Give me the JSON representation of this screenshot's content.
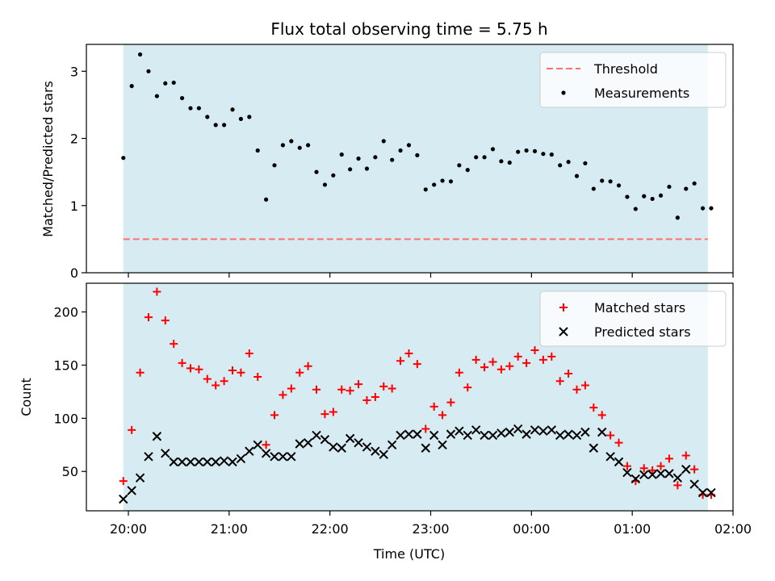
{
  "figure": {
    "title": "Flux total observing time = 5.75 h"
  },
  "chart_data": [
    {
      "type": "scatter",
      "panel": "top",
      "title": "Flux total observing time = 5.75 h",
      "xlabel": "",
      "ylabel": "Matched/Predicted stars",
      "xlim": [
        "19:35",
        "02:00"
      ],
      "ylim": [
        0,
        3.4
      ],
      "yticks": [
        0,
        1,
        2,
        3
      ],
      "xticks": [
        "20:00",
        "21:00",
        "22:00",
        "23:00",
        "00:00",
        "01:00",
        "02:00"
      ],
      "show_xticklabels": false,
      "shaded_span": {
        "from": "19:57",
        "to": "01:45",
        "color": "#add8e6"
      },
      "legend": {
        "placement": "top-right",
        "entries": [
          "Threshold",
          "Measurements"
        ]
      },
      "series": [
        {
          "name": "Threshold",
          "kind": "hline",
          "y": 0.5,
          "from": "19:57",
          "to": "01:45",
          "color": "#ff7070",
          "style": "dashed"
        },
        {
          "name": "Measurements",
          "kind": "points",
          "color": "#000000",
          "x": [
            "19:57",
            "20:02",
            "20:07",
            "20:12",
            "20:17",
            "20:22",
            "20:27",
            "20:32",
            "20:37",
            "20:42",
            "20:47",
            "20:52",
            "20:57",
            "21:02",
            "21:07",
            "21:12",
            "21:17",
            "21:22",
            "21:27",
            "21:32",
            "21:37",
            "21:42",
            "21:47",
            "21:52",
            "21:57",
            "22:02",
            "22:07",
            "22:12",
            "22:17",
            "22:22",
            "22:27",
            "22:32",
            "22:37",
            "22:42",
            "22:47",
            "22:52",
            "22:57",
            "23:02",
            "23:07",
            "23:12",
            "23:17",
            "23:22",
            "23:27",
            "23:32",
            "23:37",
            "23:42",
            "23:47",
            "23:52",
            "23:57",
            "00:02",
            "00:07",
            "00:12",
            "00:17",
            "00:22",
            "00:27",
            "00:32",
            "00:37",
            "00:42",
            "00:47",
            "00:52",
            "00:57",
            "01:02",
            "01:07",
            "01:12",
            "01:17",
            "01:22",
            "01:27",
            "01:32",
            "01:37",
            "01:42",
            "01:47"
          ],
          "y": [
            1.71,
            2.78,
            3.25,
            3.0,
            2.63,
            2.82,
            2.83,
            2.6,
            2.45,
            2.45,
            2.32,
            2.2,
            2.2,
            2.43,
            2.29,
            2.32,
            1.82,
            1.09,
            1.6,
            1.9,
            1.96,
            1.86,
            1.9,
            1.5,
            1.31,
            1.45,
            1.76,
            1.54,
            1.7,
            1.55,
            1.72,
            1.96,
            1.68,
            1.82,
            1.9,
            1.75,
            1.24,
            1.31,
            1.37,
            1.36,
            1.6,
            1.53,
            1.72,
            1.72,
            1.84,
            1.66,
            1.64,
            1.8,
            1.82,
            1.81,
            1.77,
            1.76,
            1.6,
            1.65,
            1.44,
            1.63,
            1.25,
            1.37,
            1.36,
            1.3,
            1.13,
            0.95,
            1.14,
            1.1,
            1.15,
            1.28,
            0.82,
            1.25,
            1.33,
            0.96,
            0.96
          ]
        }
      ]
    },
    {
      "type": "scatter",
      "panel": "bottom",
      "xlabel": "Time (UTC)",
      "ylabel": "Count",
      "xlim": [
        "19:35",
        "02:00"
      ],
      "ylim": [
        13,
        227
      ],
      "yticks": [
        50,
        100,
        150,
        200
      ],
      "xticks": [
        "20:00",
        "21:00",
        "22:00",
        "23:00",
        "00:00",
        "01:00",
        "02:00"
      ],
      "shaded_span": {
        "from": "19:57",
        "to": "01:45",
        "color": "#add8e6"
      },
      "legend": {
        "placement": "top-right",
        "entries": [
          "Matched stars",
          "Predicted stars"
        ]
      },
      "series": [
        {
          "name": "Matched stars",
          "marker": "+",
          "color": "#ff0000",
          "x": [
            "19:57",
            "20:02",
            "20:07",
            "20:12",
            "20:17",
            "20:22",
            "20:27",
            "20:32",
            "20:37",
            "20:42",
            "20:47",
            "20:52",
            "20:57",
            "21:02",
            "21:07",
            "21:12",
            "21:17",
            "21:22",
            "21:27",
            "21:32",
            "21:37",
            "21:42",
            "21:47",
            "21:52",
            "21:57",
            "22:02",
            "22:07",
            "22:12",
            "22:17",
            "22:22",
            "22:27",
            "22:32",
            "22:37",
            "22:42",
            "22:47",
            "22:52",
            "22:57",
            "23:02",
            "23:07",
            "23:12",
            "23:17",
            "23:22",
            "23:27",
            "23:32",
            "23:37",
            "23:42",
            "23:47",
            "23:52",
            "23:57",
            "00:02",
            "00:07",
            "00:12",
            "00:17",
            "00:22",
            "00:27",
            "00:32",
            "00:37",
            "00:42",
            "00:47",
            "00:52",
            "00:57",
            "01:02",
            "01:07",
            "01:12",
            "01:17",
            "01:22",
            "01:27",
            "01:32",
            "01:37",
            "01:42",
            "01:47"
          ],
          "y": [
            41,
            89,
            143,
            195,
            219,
            192,
            170,
            152,
            147,
            146,
            137,
            131,
            135,
            145,
            143,
            161,
            139,
            75,
            103,
            122,
            128,
            143,
            149,
            127,
            104,
            106,
            127,
            126,
            132,
            117,
            120,
            130,
            128,
            154,
            161,
            151,
            90,
            111,
            103,
            115,
            143,
            129,
            155,
            148,
            153,
            146,
            149,
            158,
            152,
            164,
            155,
            158,
            135,
            142,
            127,
            131,
            110,
            103,
            84,
            77,
            55,
            41,
            53,
            51,
            55,
            62,
            37,
            65,
            52,
            28,
            28
          ]
        },
        {
          "name": "Predicted stars",
          "marker": "x",
          "color": "#000000",
          "x": [
            "19:57",
            "20:02",
            "20:07",
            "20:12",
            "20:17",
            "20:22",
            "20:27",
            "20:32",
            "20:37",
            "20:42",
            "20:47",
            "20:52",
            "20:57",
            "21:02",
            "21:07",
            "21:12",
            "21:17",
            "21:22",
            "21:27",
            "21:32",
            "21:37",
            "21:42",
            "21:47",
            "21:52",
            "21:57",
            "22:02",
            "22:07",
            "22:12",
            "22:17",
            "22:22",
            "22:27",
            "22:32",
            "22:37",
            "22:42",
            "22:47",
            "22:52",
            "22:57",
            "23:02",
            "23:07",
            "23:12",
            "23:17",
            "23:22",
            "23:27",
            "23:32",
            "23:37",
            "23:42",
            "23:47",
            "23:52",
            "23:57",
            "00:02",
            "00:07",
            "00:12",
            "00:17",
            "00:22",
            "00:27",
            "00:32",
            "00:37",
            "00:42",
            "00:47",
            "00:52",
            "00:57",
            "01:02",
            "01:07",
            "01:12",
            "01:17",
            "01:22",
            "01:27",
            "01:32",
            "01:37",
            "01:42",
            "01:47"
          ],
          "y": [
            24,
            32,
            44,
            64,
            83,
            67,
            59,
            59,
            59,
            59,
            59,
            59,
            60,
            59,
            62,
            69,
            75,
            67,
            64,
            64,
            64,
            76,
            77,
            84,
            80,
            73,
            72,
            81,
            77,
            73,
            69,
            66,
            75,
            84,
            85,
            85,
            72,
            84,
            75,
            85,
            88,
            84,
            89,
            84,
            84,
            86,
            87,
            90,
            85,
            89,
            88,
            89,
            84,
            85,
            84,
            87,
            72,
            87,
            64,
            59,
            49,
            43,
            47,
            47,
            48,
            48,
            44,
            52,
            38,
            30,
            30
          ]
        }
      ]
    }
  ]
}
